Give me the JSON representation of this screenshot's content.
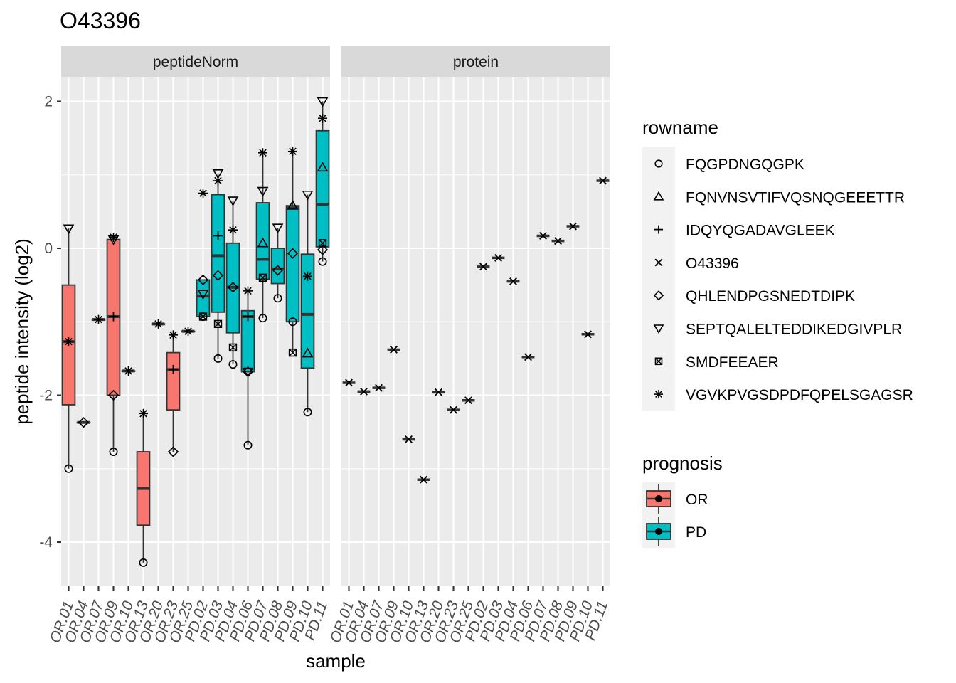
{
  "title": "O43396",
  "xlabel": "sample",
  "ylabel": "peptide intensity (log2)",
  "colors": {
    "OR": "#F8766D",
    "PD": "#00BFC4"
  },
  "chart_data": {
    "type": "boxplot",
    "title": "O43396",
    "xlabel": "sample",
    "ylabel": "peptide intensity (log2)",
    "ylim": [
      -4.6,
      2.35
    ],
    "y_ticks": [
      2,
      0,
      -2,
      -4
    ],
    "y_tick_labels": [
      "2",
      "0",
      "-2",
      "-4"
    ],
    "grid": true,
    "legend_position": "right",
    "samples": [
      "OR.01",
      "OR.04",
      "OR.07",
      "OR.09",
      "OR.10",
      "OR.13",
      "OR.20",
      "OR.23",
      "OR.25",
      "PD.02",
      "PD.03",
      "PD.04",
      "PD.06",
      "PD.07",
      "PD.08",
      "PD.09",
      "PD.10",
      "PD.11"
    ],
    "prognosis": [
      "OR",
      "OR",
      "OR",
      "OR",
      "OR",
      "OR",
      "OR",
      "OR",
      "OR",
      "PD",
      "PD",
      "PD",
      "PD",
      "PD",
      "PD",
      "PD",
      "PD",
      "PD"
    ],
    "facets": [
      "peptideNorm",
      "protein"
    ],
    "legend_rowname": {
      "title": "rowname",
      "entries": [
        {
          "label": "FQGPDNGQGPK",
          "shape": "circle"
        },
        {
          "label": "FQNVNSVTIFVQSNQGEEETTR",
          "shape": "triangle"
        },
        {
          "label": "IDQYQGADAVGLEEK",
          "shape": "plus"
        },
        {
          "label": "O43396",
          "shape": "cross"
        },
        {
          "label": "QHLENDPGSNEDTDIPK",
          "shape": "diamond"
        },
        {
          "label": "SEPTQALELTEDDIKEDGIVPLR",
          "shape": "triangle-down"
        },
        {
          "label": "SMDFEEAER",
          "shape": "square-cross"
        },
        {
          "label": "VGVKPVGSDPDFQPELSGAGSR",
          "shape": "asterisk"
        }
      ]
    },
    "legend_prognosis": {
      "title": "prognosis",
      "entries": [
        {
          "label": "OR",
          "color": "#F8766D"
        },
        {
          "label": "PD",
          "color": "#00BFC4"
        }
      ]
    },
    "peptideNorm_boxes": [
      {
        "sample": "OR.01",
        "ymin": -3.0,
        "q1": -2.13,
        "median": -1.27,
        "q3": -0.5,
        "ymax": 0.27
      },
      {
        "sample": "OR.04",
        "ymin": -2.37,
        "q1": -2.37,
        "median": -2.37,
        "q3": -2.37,
        "ymax": -2.37
      },
      {
        "sample": "OR.07",
        "ymin": -0.97,
        "q1": -0.97,
        "median": -0.97,
        "q3": -0.97,
        "ymax": -0.97
      },
      {
        "sample": "OR.09",
        "ymin": -2.77,
        "q1": -2.0,
        "median": -0.93,
        "q3": 0.12,
        "ymax": 0.15
      },
      {
        "sample": "OR.10",
        "ymin": -1.67,
        "q1": -1.67,
        "median": -1.67,
        "q3": -1.67,
        "ymax": -1.67
      },
      {
        "sample": "OR.13",
        "ymin": -4.28,
        "q1": -3.77,
        "median": -3.27,
        "q3": -2.77,
        "ymax": -2.25
      },
      {
        "sample": "OR.20",
        "ymin": -1.03,
        "q1": -1.03,
        "median": -1.03,
        "q3": -1.03,
        "ymax": -1.03
      },
      {
        "sample": "OR.23",
        "ymin": -2.77,
        "q1": -2.2,
        "median": -1.65,
        "q3": -1.42,
        "ymax": -1.18
      },
      {
        "sample": "OR.25",
        "ymin": -1.13,
        "q1": -1.13,
        "median": -1.13,
        "q3": -1.13,
        "ymax": -1.13
      },
      {
        "sample": "PD.02",
        "ymin": -0.93,
        "q1": -0.93,
        "median": -0.65,
        "q3": -0.43,
        "ymax": -0.43
      },
      {
        "sample": "PD.03",
        "ymin": -1.5,
        "q1": -0.87,
        "median": -0.1,
        "q3": 0.73,
        "ymax": 1.02
      },
      {
        "sample": "PD.04",
        "ymin": -1.58,
        "q1": -1.15,
        "median": -0.53,
        "q3": 0.07,
        "ymax": 0.65
      },
      {
        "sample": "PD.06",
        "ymin": -2.68,
        "q1": -1.68,
        "median": -0.93,
        "q3": -0.85,
        "ymax": -0.58
      },
      {
        "sample": "PD.07",
        "ymin": -0.95,
        "q1": -0.42,
        "median": -0.15,
        "q3": 0.62,
        "ymax": 1.3
      },
      {
        "sample": "PD.08",
        "ymin": -0.68,
        "q1": -0.48,
        "median": -0.28,
        "q3": 0.0,
        "ymax": 0.28
      },
      {
        "sample": "PD.09",
        "ymin": -1.42,
        "q1": -1.0,
        "median": 0.55,
        "q3": 0.58,
        "ymax": 1.32
      },
      {
        "sample": "PD.10",
        "ymin": -2.23,
        "q1": -1.63,
        "median": -0.9,
        "q3": -0.08,
        "ymax": 0.73
      },
      {
        "sample": "PD.11",
        "ymin": -0.18,
        "q1": 0.02,
        "median": 0.6,
        "q3": 1.6,
        "ymax": 2.0
      }
    ],
    "peptideNorm_points": [
      {
        "sample": "OR.01",
        "shape": "circle",
        "y": -3.0
      },
      {
        "sample": "OR.01",
        "shape": "triangle-down",
        "y": 0.27
      },
      {
        "sample": "OR.01",
        "shape": "asterisk",
        "y": -1.27
      },
      {
        "sample": "OR.04",
        "shape": "diamond",
        "y": -2.37
      },
      {
        "sample": "OR.07",
        "shape": "asterisk",
        "y": -0.97
      },
      {
        "sample": "OR.09",
        "shape": "circle",
        "y": -2.77
      },
      {
        "sample": "OR.09",
        "shape": "diamond",
        "y": -2.0
      },
      {
        "sample": "OR.09",
        "shape": "plus",
        "y": -0.93
      },
      {
        "sample": "OR.09",
        "shape": "triangle-down",
        "y": 0.12
      },
      {
        "sample": "OR.09",
        "shape": "asterisk",
        "y": 0.15
      },
      {
        "sample": "OR.10",
        "shape": "asterisk",
        "y": -1.67
      },
      {
        "sample": "OR.13",
        "shape": "circle",
        "y": -4.28
      },
      {
        "sample": "OR.13",
        "shape": "asterisk",
        "y": -2.25
      },
      {
        "sample": "OR.20",
        "shape": "asterisk",
        "y": -1.03
      },
      {
        "sample": "OR.23",
        "shape": "diamond",
        "y": -2.77
      },
      {
        "sample": "OR.23",
        "shape": "plus",
        "y": -1.65
      },
      {
        "sample": "OR.23",
        "shape": "asterisk",
        "y": -1.18
      },
      {
        "sample": "OR.25",
        "shape": "asterisk",
        "y": -1.13
      },
      {
        "sample": "PD.02",
        "shape": "asterisk",
        "y": 0.75
      },
      {
        "sample": "PD.02",
        "shape": "diamond",
        "y": -0.43
      },
      {
        "sample": "PD.02",
        "shape": "triangle-down",
        "y": -0.62
      },
      {
        "sample": "PD.02",
        "shape": "square-cross",
        "y": -0.93
      },
      {
        "sample": "PD.02",
        "shape": "circle",
        "y": -0.93
      },
      {
        "sample": "PD.03",
        "shape": "triangle-down",
        "y": 1.02
      },
      {
        "sample": "PD.03",
        "shape": "asterisk",
        "y": 0.92
      },
      {
        "sample": "PD.03",
        "shape": "plus",
        "y": 0.17
      },
      {
        "sample": "PD.03",
        "shape": "diamond",
        "y": -0.37
      },
      {
        "sample": "PD.03",
        "shape": "square-cross",
        "y": -1.03
      },
      {
        "sample": "PD.03",
        "shape": "circle",
        "y": -1.5
      },
      {
        "sample": "PD.04",
        "shape": "triangle-down",
        "y": 0.65
      },
      {
        "sample": "PD.04",
        "shape": "asterisk",
        "y": 0.25
      },
      {
        "sample": "PD.04",
        "shape": "diamond",
        "y": -0.53
      },
      {
        "sample": "PD.04",
        "shape": "square-cross",
        "y": -1.35
      },
      {
        "sample": "PD.04",
        "shape": "circle",
        "y": -1.58
      },
      {
        "sample": "PD.06",
        "shape": "asterisk",
        "y": -0.58
      },
      {
        "sample": "PD.06",
        "shape": "plus",
        "y": -0.93
      },
      {
        "sample": "PD.06",
        "shape": "triangle-down",
        "y": -1.68
      },
      {
        "sample": "PD.06",
        "shape": "diamond",
        "y": -1.68
      },
      {
        "sample": "PD.06",
        "shape": "circle",
        "y": -2.68
      },
      {
        "sample": "PD.07",
        "shape": "asterisk",
        "y": 1.3
      },
      {
        "sample": "PD.07",
        "shape": "triangle-down",
        "y": 0.78
      },
      {
        "sample": "PD.07",
        "shape": "triangle",
        "y": 0.07
      },
      {
        "sample": "PD.07",
        "shape": "square-cross",
        "y": -0.4
      },
      {
        "sample": "PD.07",
        "shape": "circle",
        "y": -0.95
      },
      {
        "sample": "PD.08",
        "shape": "triangle-down",
        "y": 0.28
      },
      {
        "sample": "PD.08",
        "shape": "diamond",
        "y": -0.3
      },
      {
        "sample": "PD.08",
        "shape": "circle",
        "y": -0.68
      },
      {
        "sample": "PD.09",
        "shape": "asterisk",
        "y": 1.32
      },
      {
        "sample": "PD.09",
        "shape": "triangle",
        "y": 0.58
      },
      {
        "sample": "PD.09",
        "shape": "diamond",
        "y": -0.07
      },
      {
        "sample": "PD.09",
        "shape": "circle",
        "y": -1.0
      },
      {
        "sample": "PD.09",
        "shape": "square-cross",
        "y": -1.42
      },
      {
        "sample": "PD.10",
        "shape": "triangle-down",
        "y": 0.73
      },
      {
        "sample": "PD.10",
        "shape": "asterisk",
        "y": -0.38
      },
      {
        "sample": "PD.10",
        "shape": "triangle",
        "y": -1.43
      },
      {
        "sample": "PD.10",
        "shape": "circle",
        "y": -2.23
      },
      {
        "sample": "PD.11",
        "shape": "triangle-down",
        "y": 2.0
      },
      {
        "sample": "PD.11",
        "shape": "asterisk",
        "y": 1.77
      },
      {
        "sample": "PD.11",
        "shape": "triangle",
        "y": 1.1
      },
      {
        "sample": "PD.11",
        "shape": "square-cross",
        "y": 0.07
      },
      {
        "sample": "PD.11",
        "shape": "diamond",
        "y": -0.02
      },
      {
        "sample": "PD.11",
        "shape": "circle",
        "y": -0.18
      }
    ],
    "protein_values": [
      -1.83,
      -1.95,
      -1.9,
      -1.38,
      -2.6,
      -3.15,
      -1.96,
      -2.2,
      -2.07,
      -0.25,
      -0.13,
      -0.45,
      -1.48,
      0.17,
      0.1,
      0.3,
      -1.17,
      0.92
    ]
  }
}
